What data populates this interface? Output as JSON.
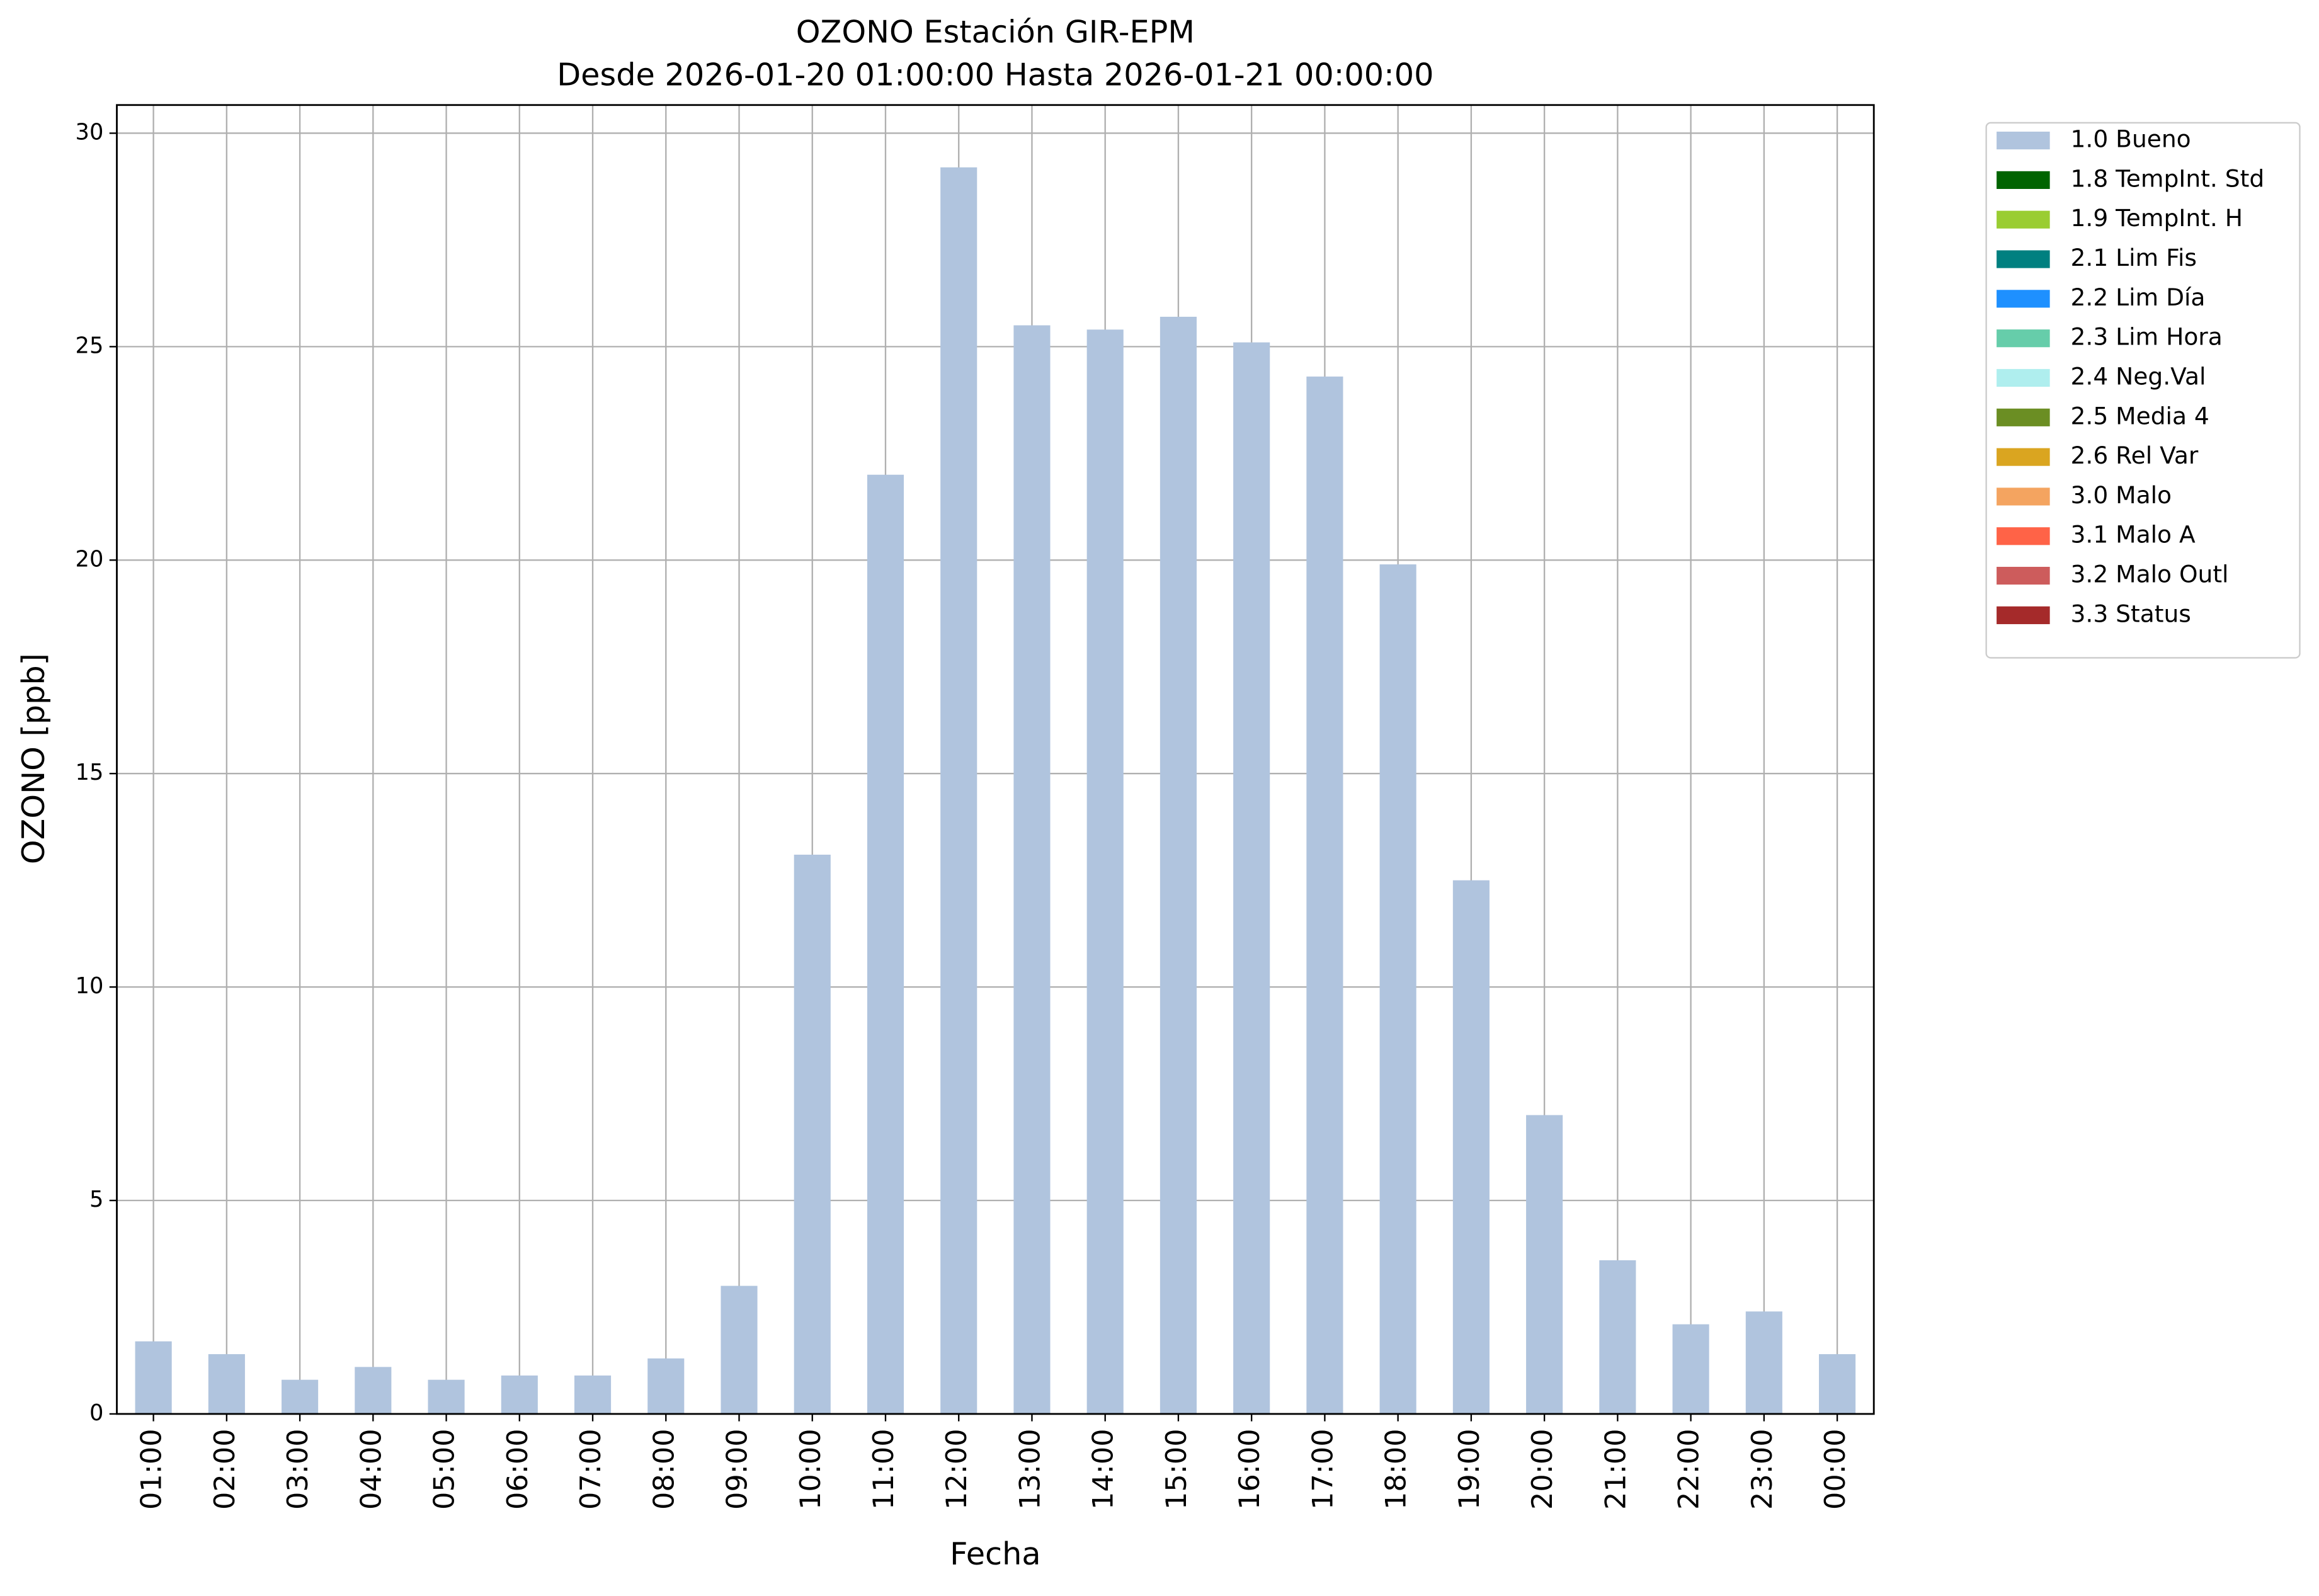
{
  "chart_data": {
    "type": "bar",
    "stacked": true,
    "title": "OZONO Estación GIR-EPM",
    "subtitle": "Desde 2026-01-20 01:00:00 Hasta 2026-01-21 00:00:00",
    "x_label": "Fecha",
    "y_label": "OZONO [ppb]",
    "categories": [
      "01:00",
      "02:00",
      "03:00",
      "04:00",
      "05:00",
      "06:00",
      "07:00",
      "08:00",
      "09:00",
      "10:00",
      "11:00",
      "12:00",
      "13:00",
      "14:00",
      "15:00",
      "16:00",
      "17:00",
      "18:00",
      "19:00",
      "20:00",
      "21:00",
      "22:00",
      "23:00",
      "00:00"
    ],
    "series": [
      {
        "name": "1.0 Bueno",
        "color": "#b0c4de",
        "values": [
          1.7,
          1.4,
          0.8,
          1.1,
          0.8,
          0.9,
          0.9,
          1.3,
          3.0,
          13.1,
          22.0,
          29.2,
          25.5,
          25.4,
          25.7,
          25.1,
          24.3,
          19.9,
          12.5,
          7.0,
          3.6,
          2.1,
          2.4,
          1.4
        ]
      },
      {
        "name": "1.8 TempInt. Std",
        "color": "#006400",
        "values": [
          0,
          0,
          0,
          0,
          0,
          0,
          0,
          0,
          0,
          0,
          0,
          0,
          0,
          0,
          0,
          0,
          0,
          0,
          0,
          0,
          0,
          0,
          0,
          0
        ]
      },
      {
        "name": "1.9 TempInt. H",
        "color": "#9acd32",
        "values": [
          0,
          0,
          0,
          0,
          0,
          0,
          0,
          0,
          0,
          0,
          0,
          0,
          0,
          0,
          0,
          0,
          0,
          0,
          0,
          0,
          0,
          0,
          0,
          0
        ]
      },
      {
        "name": "2.1 Lim Fis",
        "color": "#008080",
        "values": [
          0,
          0,
          0,
          0,
          0,
          0,
          0,
          0,
          0,
          0,
          0,
          0,
          0,
          0,
          0,
          0,
          0,
          0,
          0,
          0,
          0,
          0,
          0,
          0
        ]
      },
      {
        "name": "2.2 Lim Día",
        "color": "#1e90ff",
        "values": [
          0,
          0,
          0,
          0,
          0,
          0,
          0,
          0,
          0,
          0,
          0,
          0,
          0,
          0,
          0,
          0,
          0,
          0,
          0,
          0,
          0,
          0,
          0,
          0
        ]
      },
      {
        "name": "2.3 Lim Hora",
        "color": "#66cdaa",
        "values": [
          0,
          0,
          0,
          0,
          0,
          0,
          0,
          0,
          0,
          0,
          0,
          0,
          0,
          0,
          0,
          0,
          0,
          0,
          0,
          0,
          0,
          0,
          0,
          0
        ]
      },
      {
        "name": "2.4 Neg.Val",
        "color": "#afeeee",
        "values": [
          0,
          0,
          0,
          0,
          0,
          0,
          0,
          0,
          0,
          0,
          0,
          0,
          0,
          0,
          0,
          0,
          0,
          0,
          0,
          0,
          0,
          0,
          0,
          0
        ]
      },
      {
        "name": "2.5 Media 4",
        "color": "#6b8e23",
        "values": [
          0,
          0,
          0,
          0,
          0,
          0,
          0,
          0,
          0,
          0,
          0,
          0,
          0,
          0,
          0,
          0,
          0,
          0,
          0,
          0,
          0,
          0,
          0,
          0
        ]
      },
      {
        "name": "2.6 Rel Var",
        "color": "#daa520",
        "values": [
          0,
          0,
          0,
          0,
          0,
          0,
          0,
          0,
          0,
          0,
          0,
          0,
          0,
          0,
          0,
          0,
          0,
          0,
          0,
          0,
          0,
          0,
          0,
          0
        ]
      },
      {
        "name": "3.0 Malo",
        "color": "#f4a460",
        "values": [
          0,
          0,
          0,
          0,
          0,
          0,
          0,
          0,
          0,
          0,
          0,
          0,
          0,
          0,
          0,
          0,
          0,
          0,
          0,
          0,
          0,
          0,
          0,
          0
        ]
      },
      {
        "name": "3.1 Malo A",
        "color": "#ff6347",
        "values": [
          0,
          0,
          0,
          0,
          0,
          0,
          0,
          0,
          0,
          0,
          0,
          0,
          0,
          0,
          0,
          0,
          0,
          0,
          0,
          0,
          0,
          0,
          0,
          0
        ]
      },
      {
        "name": "3.2 Malo Outl",
        "color": "#cd5c5c",
        "values": [
          0,
          0,
          0,
          0,
          0,
          0,
          0,
          0,
          0,
          0,
          0,
          0,
          0,
          0,
          0,
          0,
          0,
          0,
          0,
          0,
          0,
          0,
          0,
          0
        ]
      },
      {
        "name": "3.3 Status",
        "color": "#a52a2a",
        "values": [
          0,
          0,
          0,
          0,
          0,
          0,
          0,
          0,
          0,
          0,
          0,
          0,
          0,
          0,
          0,
          0,
          0,
          0,
          0,
          0,
          0,
          0,
          0,
          0
        ]
      }
    ],
    "ylim": [
      0,
      30.66
    ],
    "yticks": [
      0,
      5,
      10,
      15,
      20,
      25,
      30
    ],
    "grid": true,
    "legend": "outside-upper-right"
  }
}
